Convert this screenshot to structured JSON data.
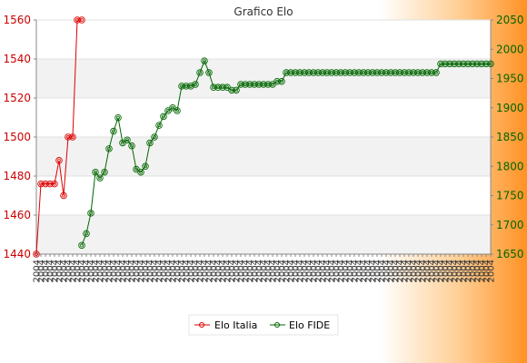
{
  "chart_data": {
    "type": "line",
    "title": "Grafico Elo",
    "xlabel": "",
    "y_left": {
      "range": [
        1440,
        1560
      ],
      "ticks": [
        1440,
        1460,
        1480,
        1500,
        1520,
        1540,
        1560
      ],
      "color": "#cc0000"
    },
    "y_right": {
      "range": [
        1650,
        2050
      ],
      "ticks": [
        1650,
        1700,
        1750,
        1800,
        1850,
        1900,
        1950,
        2000,
        2050
      ],
      "color": "#006600"
    },
    "grid": "horizontal bands",
    "legend_position": "bottom",
    "x_tick_label_repeated": "2004",
    "x_tick_count": 101,
    "series": [
      {
        "name": "Elo Italia",
        "axis": "left",
        "color": "#dd0000",
        "marker": "circle",
        "points": [
          [
            0,
            1440
          ],
          [
            1,
            1476
          ],
          [
            2,
            1476
          ],
          [
            3,
            1476
          ],
          [
            4,
            1476
          ],
          [
            5,
            1488
          ],
          [
            6,
            1470
          ],
          [
            7,
            1500
          ],
          [
            8,
            1500
          ],
          [
            9,
            1560
          ],
          [
            10,
            1560
          ]
        ]
      },
      {
        "name": "Elo FIDE",
        "axis": "right",
        "color": "#006600",
        "marker": "circle",
        "points": [
          [
            10,
            1665
          ],
          [
            11,
            1685
          ],
          [
            12,
            1720
          ],
          [
            13,
            1790
          ],
          [
            14,
            1780
          ],
          [
            15,
            1790
          ],
          [
            16,
            1830
          ],
          [
            17,
            1860
          ],
          [
            18,
            1883
          ],
          [
            19,
            1840
          ],
          [
            20,
            1845
          ],
          [
            21,
            1835
          ],
          [
            22,
            1795
          ],
          [
            23,
            1790
          ],
          [
            24,
            1800
          ],
          [
            25,
            1840
          ],
          [
            26,
            1850
          ],
          [
            27,
            1870
          ],
          [
            28,
            1885
          ],
          [
            29,
            1895
          ],
          [
            30,
            1900
          ],
          [
            31,
            1895
          ],
          [
            32,
            1937
          ],
          [
            33,
            1937
          ],
          [
            34,
            1937
          ],
          [
            35,
            1940
          ],
          [
            36,
            1960
          ],
          [
            37,
            1980
          ],
          [
            38,
            1960
          ],
          [
            39,
            1935
          ],
          [
            40,
            1935
          ],
          [
            41,
            1935
          ],
          [
            42,
            1935
          ],
          [
            43,
            1930
          ],
          [
            44,
            1930
          ],
          [
            45,
            1940
          ],
          [
            46,
            1940
          ],
          [
            47,
            1940
          ],
          [
            48,
            1940
          ],
          [
            49,
            1940
          ],
          [
            50,
            1940
          ],
          [
            51,
            1940
          ],
          [
            52,
            1940
          ],
          [
            53,
            1945
          ],
          [
            54,
            1945
          ],
          [
            55,
            1960
          ],
          [
            56,
            1960
          ],
          [
            57,
            1960
          ],
          [
            58,
            1960
          ],
          [
            59,
            1960
          ],
          [
            60,
            1960
          ],
          [
            61,
            1960
          ],
          [
            62,
            1960
          ],
          [
            63,
            1960
          ],
          [
            64,
            1960
          ],
          [
            65,
            1960
          ],
          [
            66,
            1960
          ],
          [
            67,
            1960
          ],
          [
            68,
            1960
          ],
          [
            69,
            1960
          ],
          [
            70,
            1960
          ],
          [
            71,
            1960
          ],
          [
            72,
            1960
          ],
          [
            73,
            1960
          ],
          [
            74,
            1960
          ],
          [
            75,
            1960
          ],
          [
            76,
            1960
          ],
          [
            77,
            1960
          ],
          [
            78,
            1960
          ],
          [
            79,
            1960
          ],
          [
            80,
            1960
          ],
          [
            81,
            1960
          ],
          [
            82,
            1960
          ],
          [
            83,
            1960
          ],
          [
            84,
            1960
          ],
          [
            85,
            1960
          ],
          [
            86,
            1960
          ],
          [
            87,
            1960
          ],
          [
            88,
            1960
          ],
          [
            89,
            1975
          ],
          [
            90,
            1975
          ],
          [
            91,
            1975
          ],
          [
            92,
            1975
          ],
          [
            93,
            1975
          ],
          [
            94,
            1975
          ],
          [
            95,
            1975
          ],
          [
            96,
            1975
          ],
          [
            97,
            1975
          ],
          [
            98,
            1975
          ],
          [
            99,
            1975
          ],
          [
            100,
            1975
          ]
        ]
      }
    ]
  },
  "legend": {
    "italia_label": "Elo Italia",
    "fide_label": "Elo FIDE"
  }
}
